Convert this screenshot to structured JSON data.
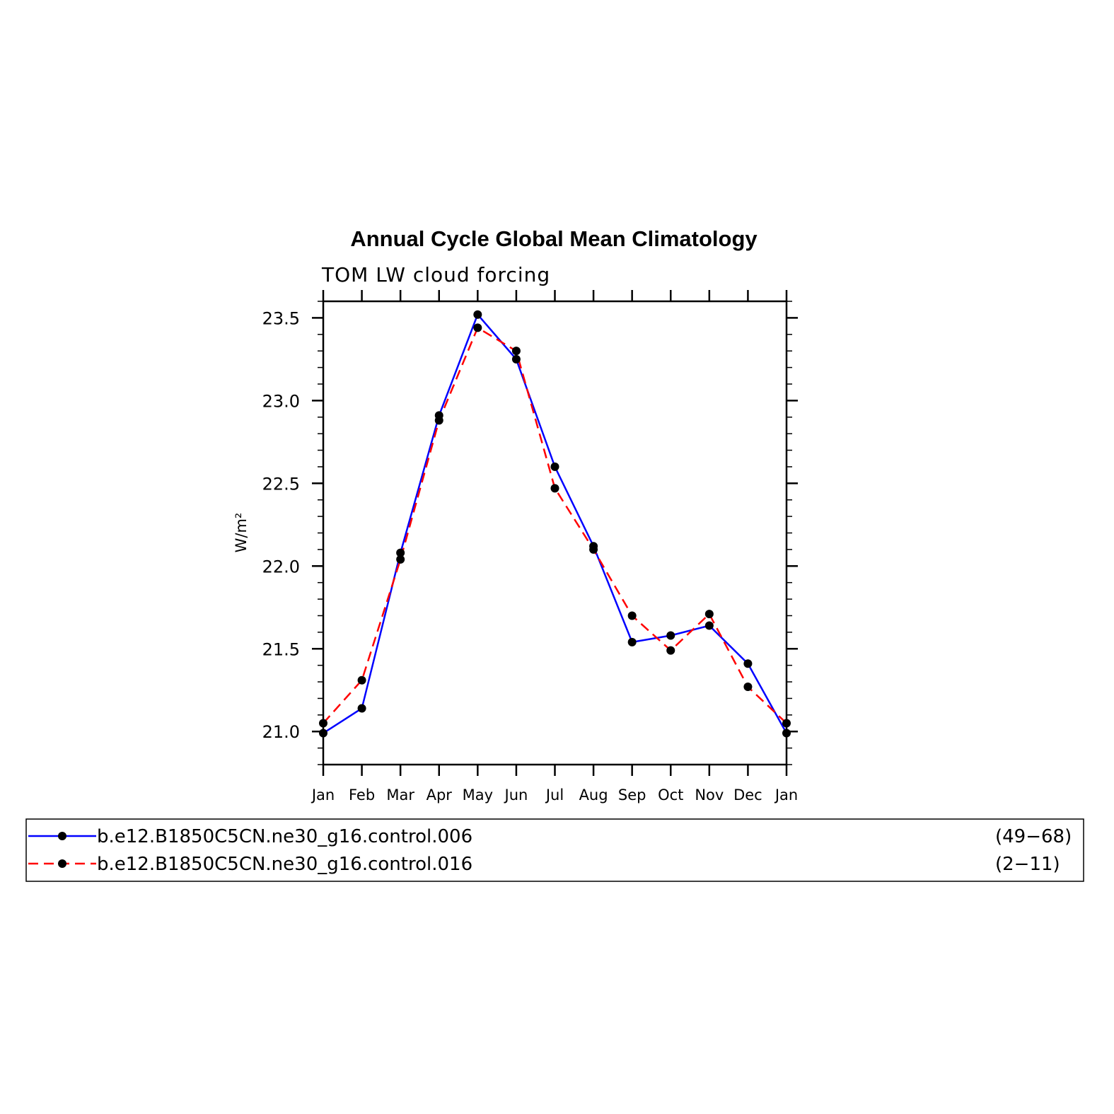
{
  "chart_data": {
    "type": "line",
    "title": "Annual Cycle Global Mean Climatology",
    "subtitle": "TOM LW cloud forcing",
    "ylabel": "W/m²",
    "xlabel": "",
    "categories": [
      "Jan",
      "Feb",
      "Mar",
      "Apr",
      "May",
      "Jun",
      "Jul",
      "Aug",
      "Sep",
      "Oct",
      "Nov",
      "Dec",
      "Jan"
    ],
    "ylim": [
      20.8,
      23.6
    ],
    "yticks": [
      "21.0",
      "21.5",
      "22.0",
      "22.5",
      "23.0",
      "23.5"
    ],
    "ytick_values": [
      21.0,
      21.5,
      22.0,
      22.5,
      23.0,
      23.5
    ],
    "grid": false,
    "legend_placement": "bottom",
    "series": [
      {
        "name": "b.e12.B1850C5CN.ne30_g16.control.006",
        "years": "(49−68)",
        "color": "#0000ff",
        "dash": "solid",
        "values": [
          20.99,
          21.14,
          22.08,
          22.91,
          23.52,
          23.25,
          22.6,
          22.12,
          21.54,
          21.58,
          21.64,
          21.41,
          20.99
        ]
      },
      {
        "name": "b.e12.B1850C5CN.ne30_g16.control.016",
        "years": "(2−11)",
        "color": "#ff0000",
        "dash": "dashed",
        "values": [
          21.05,
          21.31,
          22.04,
          22.88,
          23.44,
          23.3,
          22.47,
          22.1,
          21.7,
          21.49,
          21.71,
          21.27,
          21.05
        ]
      }
    ]
  }
}
